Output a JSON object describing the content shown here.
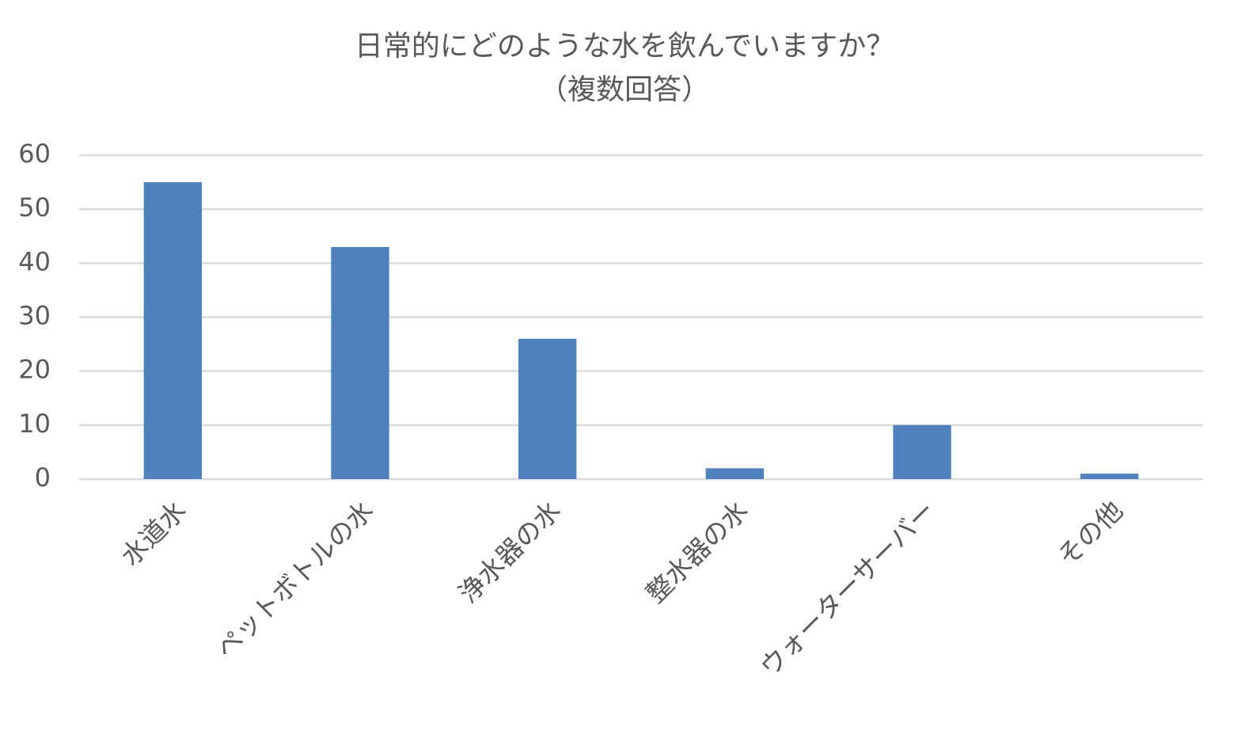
{
  "chart_data": {
    "type": "bar",
    "title": "日常的にどのような水を飲んでいますか？",
    "subtitle": "（複数回答）",
    "categories": [
      "水道水",
      "ペットボトルの水",
      "浄水器の水",
      "整水器の水",
      "ウォーターサーバー",
      "その他"
    ],
    "values": [
      55,
      43,
      26,
      2,
      10,
      1
    ],
    "color": "#4f81bd",
    "ylim": [
      0,
      60
    ],
    "yticks": [
      0,
      10,
      20,
      30,
      40,
      50,
      60
    ],
    "grid": true
  }
}
